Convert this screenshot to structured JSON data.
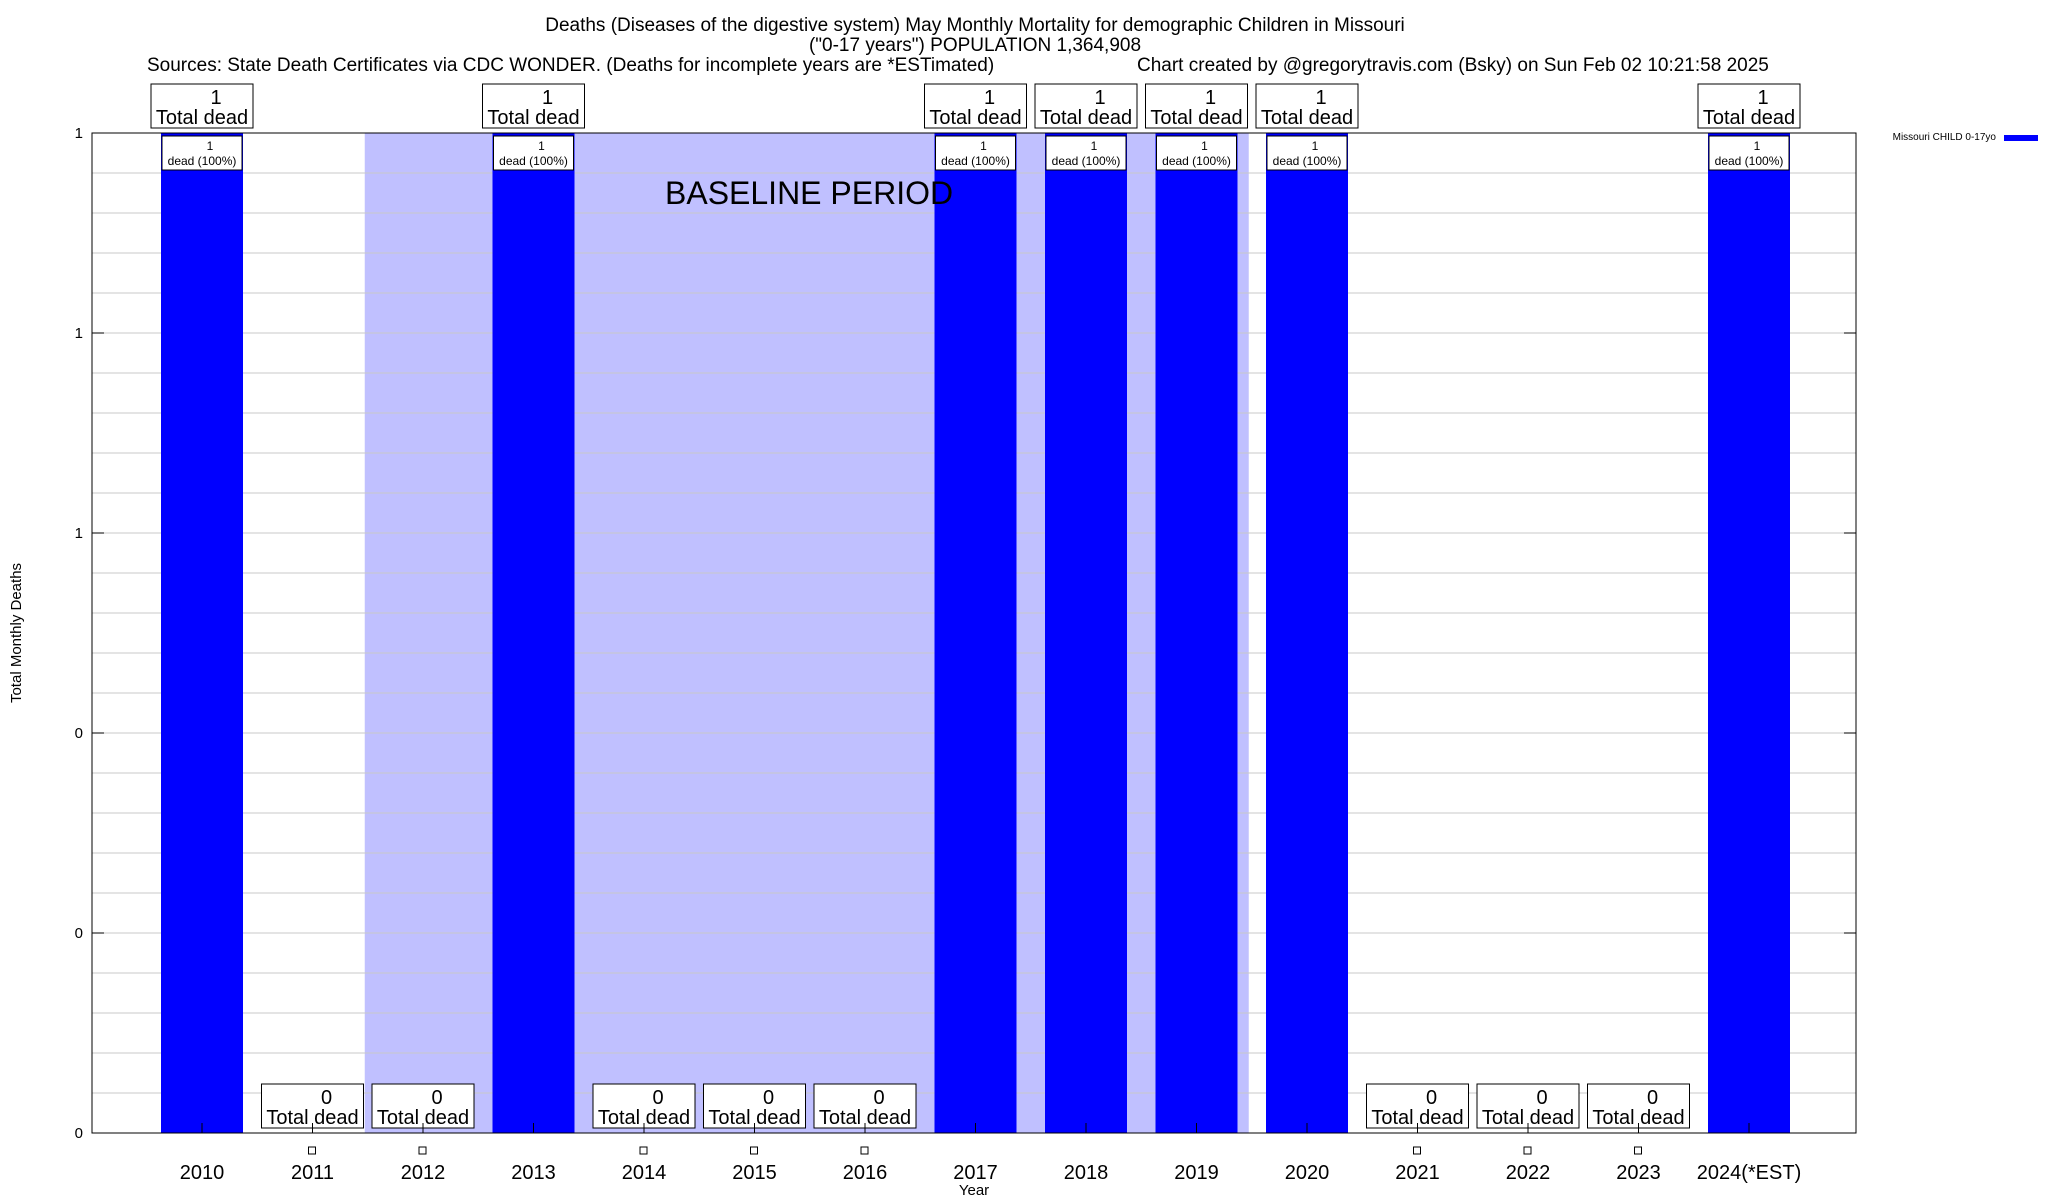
{
  "chart_data": {
    "type": "bar",
    "title_lines": [
      "Deaths (Diseases of the digestive system) May Monthly Mortality for demographic Children in Missouri",
      "(\"0-17 years\") POPULATION 1,364,908"
    ],
    "sources": "Sources: State Death Certificates via CDC WONDER. (Deaths for incomplete years are *ESTimated)",
    "credit": "Chart created by @gregorytravis.com (Bsky) on Sun Feb 02 10:21:58 2025",
    "xlabel": "Year",
    "ylabel": "Total Monthly Deaths",
    "categories": [
      "2010",
      "2011",
      "2012",
      "2013",
      "2014",
      "2015",
      "2016",
      "2017",
      "2018",
      "2019",
      "2020",
      "2021",
      "2022",
      "2023",
      "2024(*EST)"
    ],
    "series": [
      {
        "name": "Missouri CHILD 0-17yo",
        "color": "#0000ff",
        "values": [
          1,
          0,
          0,
          1,
          0,
          0,
          0,
          1,
          1,
          1,
          1,
          0,
          0,
          0,
          1
        ]
      }
    ],
    "total_label_values": [
      "1",
      "0",
      "0",
      "1",
      "0",
      "0",
      "0",
      "1",
      "1",
      "1",
      "1",
      "0",
      "0",
      "0",
      "1"
    ],
    "total_label_text": "Total dead",
    "bar_label_text": "dead (100%)",
    "bar_label_values": [
      "1",
      "",
      "",
      "1",
      "",
      "",
      "",
      "1",
      "1",
      "1",
      "1",
      "",
      "",
      "",
      "1"
    ],
    "ylim": [
      0,
      1
    ],
    "yticks": [
      {
        "value": 0,
        "label": "0"
      },
      {
        "value": 0.2,
        "label": "0"
      },
      {
        "value": 0.4,
        "label": "0"
      },
      {
        "value": 0.6,
        "label": "1"
      },
      {
        "value": 0.8,
        "label": "1"
      },
      {
        "value": 1.0,
        "label": "1"
      }
    ],
    "baseline_text": "BASELINE PERIOD",
    "baseline_span": [
      "2012",
      "2019"
    ],
    "baseline_color": "#c0c0ff",
    "grid": true,
    "legend_position": "top-right"
  }
}
